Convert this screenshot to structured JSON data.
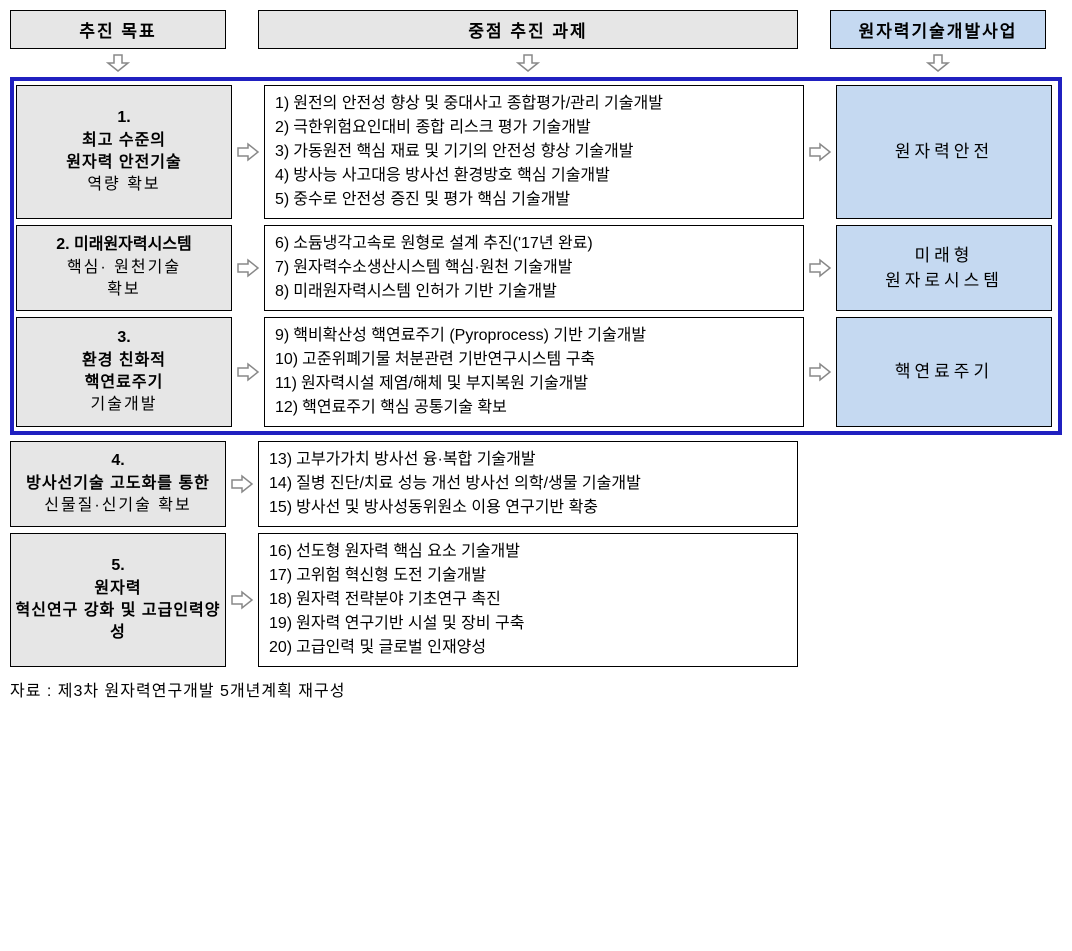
{
  "colors": {
    "gray_bg": "#e6e6e6",
    "blue_bg": "#c5d9f1",
    "highlight_border": "#2020c0",
    "box_border": "#000000",
    "arrow_fill": "#ffffff",
    "arrow_stroke": "#888888"
  },
  "headers": {
    "goal": "추진 목표",
    "task": "중점 추진 과제",
    "project": "원자력기술개발사업"
  },
  "rows": [
    {
      "goal_num": "1.",
      "goal_bold": "최고 수준의\n원자력 안전기술",
      "goal_normal": "역량 확보",
      "tasks": [
        {
          "n": "1)",
          "t": "원전의 안전성 향상 및 중대사고 종합평가/관리 기술개발"
        },
        {
          "n": "2)",
          "t": "극한위험요인대비 종합 리스크 평가 기술개발"
        },
        {
          "n": "3)",
          "t": "가동원전 핵심 재료 및 기기의 안전성 향상 기술개발"
        },
        {
          "n": "4)",
          "t": "방사능 사고대응 방사선 환경방호 핵심 기술개발"
        },
        {
          "n": "5)",
          "t": "중수로 안전성 증진 및 평가 핵심 기술개발"
        }
      ],
      "project": "원자력안전",
      "highlighted": true
    },
    {
      "goal_num": "2.",
      "goal_bold_inline": "미래원자력시스템",
      "goal_normal": "핵심· 원천기술\n확보",
      "tasks": [
        {
          "n": "6)",
          "t": "소듐냉각고속로 원형로 설계 추진('17년 완료)"
        },
        {
          "n": "7)",
          "t": "원자력수소생산시스템 핵심·원천 기술개발"
        },
        {
          "n": "8)",
          "t": "미래원자력시스템 인허가 기반 기술개발"
        }
      ],
      "project": "미래형\n원자로시스템",
      "highlighted": true
    },
    {
      "goal_num": "3.",
      "goal_bold": "환경 친화적\n핵연료주기",
      "goal_normal": "기술개발",
      "tasks": [
        {
          "n": "9)",
          "t": "핵비확산성 핵연료주기 (Pyroprocess) 기반 기술개발"
        },
        {
          "n": "10)",
          "t": "고준위폐기물 처분관련 기반연구시스템 구축"
        },
        {
          "n": "11)",
          "t": "원자력시설 제염/해체 및 부지복원 기술개발"
        },
        {
          "n": "12)",
          "t": "핵연료주기 핵심 공통기술 확보"
        }
      ],
      "project": "핵연료주기",
      "highlighted": true
    },
    {
      "goal_num": "4.",
      "goal_bold": "방사선기술 고도화를 통한",
      "goal_normal": "신물질·신기술 확보",
      "tasks": [
        {
          "n": "13)",
          "t": "고부가가치 방사선 융·복합 기술개발"
        },
        {
          "n": "14)",
          "t": "질병 진단/치료 성능 개선 방사선 의학/생물 기술개발"
        },
        {
          "n": "15)",
          "t": "방사선 및 방사성동위원소 이용 연구기반 확충"
        }
      ],
      "project": null,
      "highlighted": false
    },
    {
      "goal_num": "5.",
      "goal_bold": "원자력\n혁신연구 강화 및 고급인력양성",
      "goal_normal": "",
      "tasks": [
        {
          "n": "16)",
          "t": "선도형 원자력 핵심 요소 기술개발"
        },
        {
          "n": "17)",
          "t": "고위험 혁신형 도전 기술개발"
        },
        {
          "n": "18)",
          "t": "원자력 전략분야 기초연구 촉진"
        },
        {
          "n": "19)",
          "t": "원자력 연구기반 시설 및 장비 구축"
        },
        {
          "n": "20)",
          "t": "고급인력 및 글로벌 인재양성"
        }
      ],
      "project": null,
      "highlighted": false
    }
  ],
  "footnote": "자료 : 제3차 원자력연구개발 5개년계획 재구성",
  "layout": {
    "goal_width": 216,
    "arrow_width": 32,
    "task_width": 540,
    "project_width": 216,
    "total_width": 1072
  }
}
